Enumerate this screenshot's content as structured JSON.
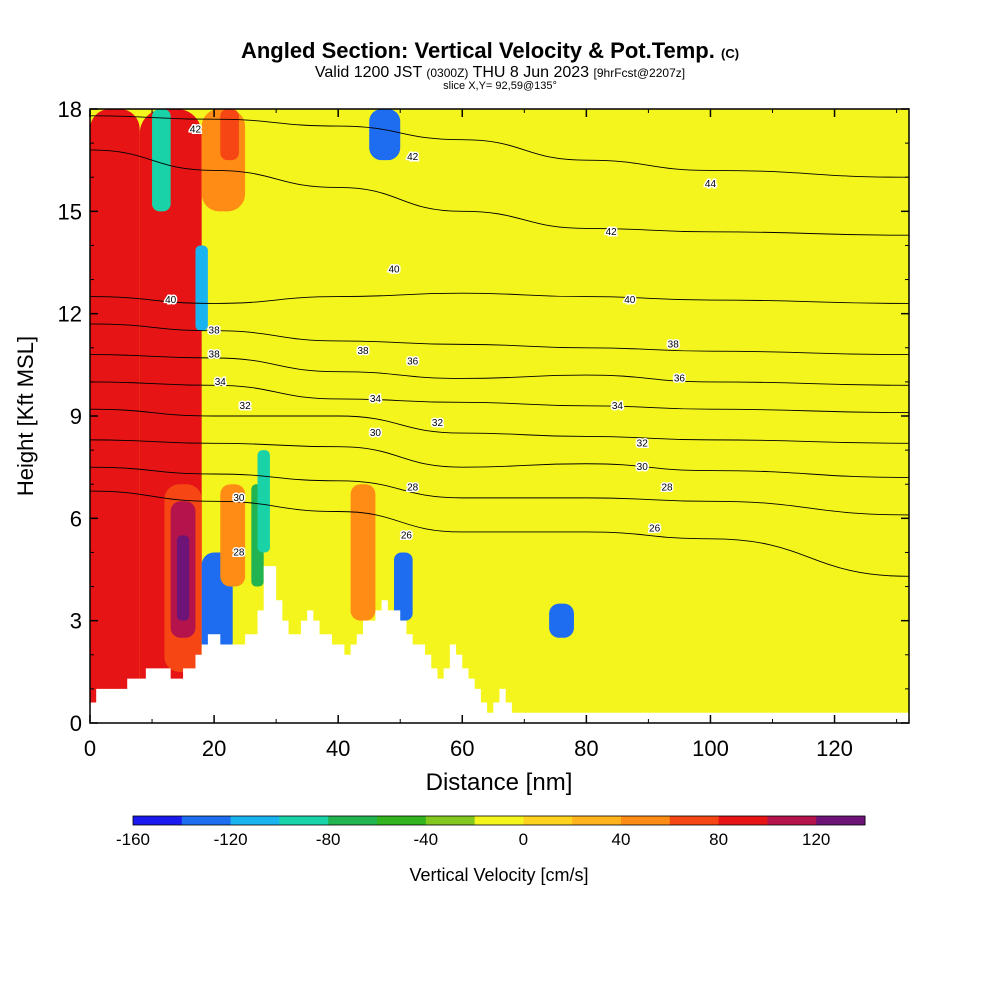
{
  "chart_data": {
    "type": "heatmap",
    "title": "Angled Section: Vertical Velocity & Pot.Temp.",
    "title_unit": "(C)",
    "subtitle": {
      "prefix": "Valid 1200 JST",
      "utc": "(0300Z)",
      "date": "THU 8 Jun 2023",
      "fcst": "[9hrFcst@2207z]"
    },
    "slice_label": "slice X,Y= 92,59@135°",
    "xlabel": "Distance [nm]",
    "ylabel": "Height [Kft MSL]",
    "xlim": [
      0,
      132
    ],
    "ylim": [
      0,
      18
    ],
    "x_ticks": [
      0,
      20,
      40,
      60,
      80,
      100,
      120
    ],
    "y_ticks": [
      0,
      3,
      6,
      9,
      12,
      15,
      18
    ],
    "colorbar": {
      "label": "Vertical Velocity [cm/s]",
      "bounds": [
        -160,
        140
      ],
      "tick_labels": [
        -160,
        -120,
        -80,
        -40,
        0,
        40,
        80,
        120
      ],
      "colors": [
        "#1a1aee",
        "#1e6cf0",
        "#19b4ef",
        "#1ad2a8",
        "#22b450",
        "#32b41e",
        "#82c81e",
        "#f5f51e",
        "#ffd21e",
        "#ffb41e",
        "#ff8c14",
        "#f54614",
        "#e61414",
        "#b4144b",
        "#6e1478"
      ]
    },
    "vertical_velocity_cells": [
      {
        "x": [
          0,
          8
        ],
        "y": [
          0,
          18
        ],
        "level": 12
      },
      {
        "x": [
          8,
          18
        ],
        "y": [
          0,
          18
        ],
        "level": 12
      },
      {
        "x": [
          10,
          13
        ],
        "y": [
          15,
          18
        ],
        "level": 3
      },
      {
        "x": [
          17,
          19
        ],
        "y": [
          11.5,
          14
        ],
        "level": 2
      },
      {
        "x": [
          18,
          25
        ],
        "y": [
          15,
          18
        ],
        "level": 10
      },
      {
        "x": [
          21,
          24
        ],
        "y": [
          16.5,
          18
        ],
        "level": 11
      },
      {
        "x": [
          45,
          50
        ],
        "y": [
          16.5,
          18
        ],
        "level": 1
      },
      {
        "x": [
          12,
          18
        ],
        "y": [
          1.5,
          7
        ],
        "level": 11
      },
      {
        "x": [
          13,
          17
        ],
        "y": [
          2.5,
          6.5
        ],
        "level": 13
      },
      {
        "x": [
          14,
          16
        ],
        "y": [
          3,
          5.5
        ],
        "level": 14
      },
      {
        "x": [
          18,
          23
        ],
        "y": [
          2,
          5
        ],
        "level": 1
      },
      {
        "x": [
          21,
          25
        ],
        "y": [
          4,
          7
        ],
        "level": 10
      },
      {
        "x": [
          26,
          28
        ],
        "y": [
          4,
          7
        ],
        "level": 4
      },
      {
        "x": [
          27,
          29
        ],
        "y": [
          5,
          8
        ],
        "level": 3
      },
      {
        "x": [
          42,
          46
        ],
        "y": [
          3,
          7
        ],
        "level": 10
      },
      {
        "x": [
          49,
          52
        ],
        "y": [
          3,
          5
        ],
        "level": 1
      },
      {
        "x": [
          74,
          78
        ],
        "y": [
          2.5,
          3.5
        ],
        "level": 1
      }
    ],
    "potential_temperature_contours": [
      {
        "label": "26",
        "x": [
          0,
          20,
          40,
          60,
          80,
          100,
          132
        ],
        "y": [
          6.8,
          6.5,
          6.2,
          5.6,
          5.6,
          5.4,
          4.3
        ]
      },
      {
        "label": "28",
        "x": [
          0,
          20,
          40,
          60,
          80,
          100,
          132
        ],
        "y": [
          7.5,
          7.3,
          7.1,
          6.6,
          6.6,
          6.5,
          6.1
        ]
      },
      {
        "label": "30",
        "x": [
          0,
          20,
          40,
          60,
          80,
          100,
          132
        ],
        "y": [
          8.3,
          8.2,
          8.1,
          7.5,
          7.6,
          7.4,
          7.2
        ]
      },
      {
        "label": "32",
        "x": [
          0,
          20,
          40,
          60,
          80,
          100,
          132
        ],
        "y": [
          9.2,
          9.0,
          9.0,
          8.5,
          8.4,
          8.3,
          8.2
        ]
      },
      {
        "label": "34",
        "x": [
          0,
          20,
          40,
          60,
          80,
          100,
          132
        ],
        "y": [
          10.0,
          9.9,
          9.5,
          9.4,
          9.3,
          9.2,
          9.1
        ]
      },
      {
        "label": "36",
        "x": [
          0,
          20,
          40,
          60,
          80,
          100,
          132
        ],
        "y": [
          10.8,
          10.7,
          10.3,
          10.1,
          10.2,
          10.0,
          9.9
        ]
      },
      {
        "label": "38",
        "x": [
          0,
          20,
          40,
          60,
          80,
          100,
          132
        ],
        "y": [
          11.7,
          11.5,
          11.2,
          11.1,
          11.0,
          10.9,
          10.8
        ]
      },
      {
        "label": "40",
        "x": [
          0,
          20,
          40,
          60,
          80,
          100,
          132
        ],
        "y": [
          12.5,
          12.3,
          12.5,
          12.6,
          12.5,
          12.4,
          12.3
        ]
      },
      {
        "label": "42",
        "x": [
          0,
          20,
          40,
          60,
          80,
          100,
          132
        ],
        "y": [
          16.8,
          16.2,
          15.7,
          15.0,
          14.5,
          14.4,
          14.3
        ]
      },
      {
        "label": "44",
        "x": [
          0,
          20,
          40,
          60,
          80,
          100,
          132
        ],
        "y": [
          17.8,
          17.7,
          17.5,
          17.1,
          16.5,
          16.2,
          16.0
        ]
      }
    ],
    "contour_labels": [
      {
        "text": "42",
        "x": 17,
        "y": 17.4
      },
      {
        "text": "42",
        "x": 52,
        "y": 16.6
      },
      {
        "text": "44",
        "x": 100,
        "y": 15.8
      },
      {
        "text": "42",
        "x": 84,
        "y": 14.4
      },
      {
        "text": "40",
        "x": 49,
        "y": 13.3
      },
      {
        "text": "40",
        "x": 13,
        "y": 12.4
      },
      {
        "text": "40",
        "x": 87,
        "y": 12.4
      },
      {
        "text": "38",
        "x": 20,
        "y": 11.5
      },
      {
        "text": "38",
        "x": 94,
        "y": 11.1
      },
      {
        "text": "38",
        "x": 44,
        "y": 10.9
      },
      {
        "text": "38",
        "x": 20,
        "y": 10.8
      },
      {
        "text": "36",
        "x": 52,
        "y": 10.6
      },
      {
        "text": "34",
        "x": 21,
        "y": 10.0
      },
      {
        "text": "36",
        "x": 95,
        "y": 10.1
      },
      {
        "text": "32",
        "x": 25,
        "y": 9.3
      },
      {
        "text": "34",
        "x": 46,
        "y": 9.5
      },
      {
        "text": "34",
        "x": 85,
        "y": 9.3
      },
      {
        "text": "32",
        "x": 56,
        "y": 8.8
      },
      {
        "text": "30",
        "x": 46,
        "y": 8.5
      },
      {
        "text": "32",
        "x": 89,
        "y": 8.2
      },
      {
        "text": "30",
        "x": 89,
        "y": 7.5
      },
      {
        "text": "28",
        "x": 52,
        "y": 6.9
      },
      {
        "text": "28",
        "x": 93,
        "y": 6.9
      },
      {
        "text": "30",
        "x": 24,
        "y": 6.6
      },
      {
        "text": "26",
        "x": 51,
        "y": 5.5
      },
      {
        "text": "26",
        "x": 91,
        "y": 5.7
      },
      {
        "text": "28",
        "x": 24,
        "y": 5.0
      }
    ],
    "terrain_profile": {
      "x": [
        0,
        1,
        1,
        6,
        6,
        9,
        9,
        13,
        13,
        15,
        15,
        17,
        17,
        18,
        18,
        19,
        19,
        21,
        21,
        25,
        25,
        27,
        27,
        28,
        28,
        30,
        30,
        31,
        31,
        32,
        32,
        34,
        34,
        35,
        35,
        36,
        36,
        37,
        37,
        39,
        39,
        41,
        41,
        42,
        42,
        43,
        43,
        44,
        44,
        46,
        46,
        47,
        47,
        48,
        48,
        50,
        50,
        51,
        51,
        52,
        52,
        54,
        54,
        55,
        55,
        56,
        56,
        57,
        57,
        58,
        58,
        59,
        59,
        60,
        60,
        61,
        61,
        62,
        62,
        63,
        63,
        64,
        64,
        65,
        65,
        66,
        66,
        67,
        67,
        68,
        68,
        69,
        69,
        70,
        70,
        71,
        71,
        72,
        72,
        132
      ],
      "y": [
        0.6,
        0.6,
        1.0,
        1.0,
        1.3,
        1.3,
        1.6,
        1.6,
        1.3,
        1.3,
        1.6,
        1.6,
        2.0,
        2.0,
        2.3,
        2.3,
        2.6,
        2.6,
        2.3,
        2.3,
        2.6,
        2.6,
        3.3,
        3.3,
        4.6,
        4.6,
        3.6,
        3.6,
        3.0,
        3.0,
        2.6,
        2.6,
        3.0,
        3.0,
        3.3,
        3.3,
        3.0,
        3.0,
        2.6,
        2.6,
        2.3,
        2.3,
        2.0,
        2.0,
        2.3,
        2.3,
        2.6,
        2.6,
        3.0,
        3.0,
        3.3,
        3.3,
        3.6,
        3.6,
        3.3,
        3.3,
        3.0,
        3.0,
        2.6,
        2.6,
        2.3,
        2.3,
        2.0,
        2.0,
        1.6,
        1.6,
        1.3,
        1.3,
        1.6,
        1.6,
        2.3,
        2.3,
        2.0,
        2.0,
        1.6,
        1.6,
        1.3,
        1.3,
        1.0,
        1.0,
        0.6,
        0.6,
        0.3,
        0.3,
        0.6,
        0.6,
        1.0,
        1.0,
        0.6,
        0.6,
        0.3,
        0.3,
        0.3,
        0.3,
        0.3,
        0.3,
        0.3,
        0.3,
        0.3,
        0.3
      ]
    }
  }
}
